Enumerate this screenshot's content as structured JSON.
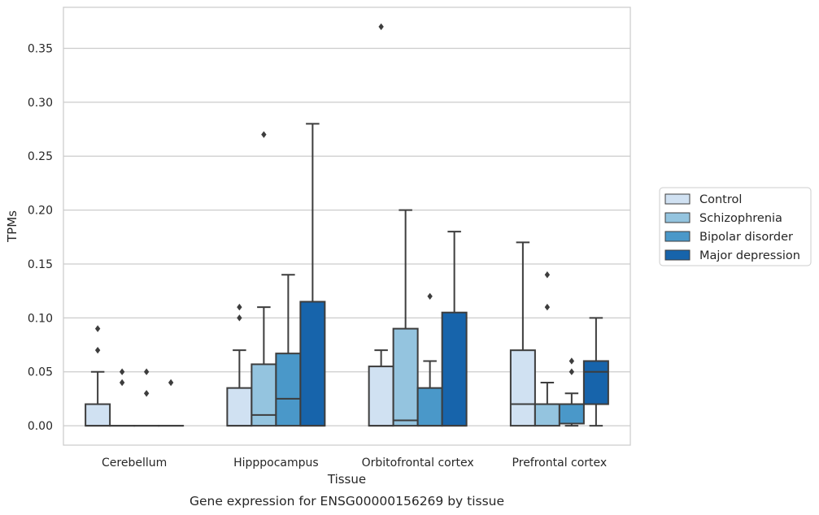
{
  "chart_data": {
    "type": "box",
    "title": "",
    "caption": "Gene expression for ENSG00000156269 by tissue",
    "xlabel": "Tissue",
    "ylabel": "TPMs",
    "ylim": [
      -0.018,
      0.388
    ],
    "yticks": [
      0.0,
      0.05,
      0.1,
      0.15,
      0.2,
      0.25,
      0.3,
      0.35
    ],
    "ytick_labels": [
      "0.00",
      "0.05",
      "0.10",
      "0.15",
      "0.20",
      "0.25",
      "0.30",
      "0.35"
    ],
    "grid": "horizontal",
    "legend_position": "right",
    "categories": [
      "Cerebellum",
      "Hipppocampus",
      "Orbitofrontal cortex",
      "Prefrontal cortex"
    ],
    "series": [
      {
        "name": "Control",
        "color": "#d0e1f2",
        "boxes": [
          {
            "q1": 0.0,
            "median": 0.0,
            "q3": 0.02,
            "whisker_low": 0.0,
            "whisker_high": 0.05,
            "outliers": [
              0.09,
              0.07
            ]
          },
          {
            "q1": 0.0,
            "median": 0.0,
            "q3": 0.035,
            "whisker_low": 0.0,
            "whisker_high": 0.07,
            "outliers": [
              0.11,
              0.1
            ]
          },
          {
            "q1": 0.0,
            "median": 0.0,
            "q3": 0.055,
            "whisker_low": 0.0,
            "whisker_high": 0.07,
            "outliers": [
              0.37
            ]
          },
          {
            "q1": 0.0,
            "median": 0.02,
            "q3": 0.07,
            "whisker_low": 0.0,
            "whisker_high": 0.17,
            "outliers": []
          }
        ]
      },
      {
        "name": "Schizophrenia",
        "color": "#94c4df",
        "boxes": [
          {
            "q1": 0.0,
            "median": 0.0,
            "q3": 0.0,
            "whisker_low": 0.0,
            "whisker_high": 0.0,
            "outliers": [
              0.05,
              0.04
            ]
          },
          {
            "q1": 0.0,
            "median": 0.01,
            "q3": 0.057,
            "whisker_low": 0.0,
            "whisker_high": 0.11,
            "outliers": [
              0.27
            ]
          },
          {
            "q1": 0.0,
            "median": 0.005,
            "q3": 0.09,
            "whisker_low": 0.0,
            "whisker_high": 0.2,
            "outliers": []
          },
          {
            "q1": 0.0,
            "median": 0.02,
            "q3": 0.02,
            "whisker_low": 0.0,
            "whisker_high": 0.04,
            "outliers": [
              0.14,
              0.11
            ]
          }
        ]
      },
      {
        "name": "Bipolar disorder",
        "color": "#4a98c9",
        "boxes": [
          {
            "q1": 0.0,
            "median": 0.0,
            "q3": 0.0,
            "whisker_low": 0.0,
            "whisker_high": 0.0,
            "outliers": [
              0.05,
              0.03
            ]
          },
          {
            "q1": 0.0,
            "median": 0.025,
            "q3": 0.067,
            "whisker_low": 0.0,
            "whisker_high": 0.14,
            "outliers": []
          },
          {
            "q1": 0.0,
            "median": 0.0,
            "q3": 0.035,
            "whisker_low": 0.0,
            "whisker_high": 0.06,
            "outliers": [
              0.12
            ]
          },
          {
            "q1": 0.002,
            "median": 0.02,
            "q3": 0.02,
            "whisker_low": 0.0,
            "whisker_high": 0.03,
            "outliers": [
              0.06,
              0.05
            ]
          }
        ]
      },
      {
        "name": "Major depression",
        "color": "#1764ab",
        "boxes": [
          {
            "q1": 0.0,
            "median": 0.0,
            "q3": 0.0,
            "whisker_low": 0.0,
            "whisker_high": 0.0,
            "outliers": [
              0.04
            ]
          },
          {
            "q1": 0.0,
            "median": 0.0,
            "q3": 0.115,
            "whisker_low": 0.0,
            "whisker_high": 0.28,
            "outliers": []
          },
          {
            "q1": 0.0,
            "median": 0.0,
            "q3": 0.105,
            "whisker_low": 0.0,
            "whisker_high": 0.18,
            "outliers": []
          },
          {
            "q1": 0.02,
            "median": 0.05,
            "q3": 0.06,
            "whisker_low": 0.0,
            "whisker_high": 0.1,
            "outliers": []
          }
        ]
      }
    ]
  }
}
